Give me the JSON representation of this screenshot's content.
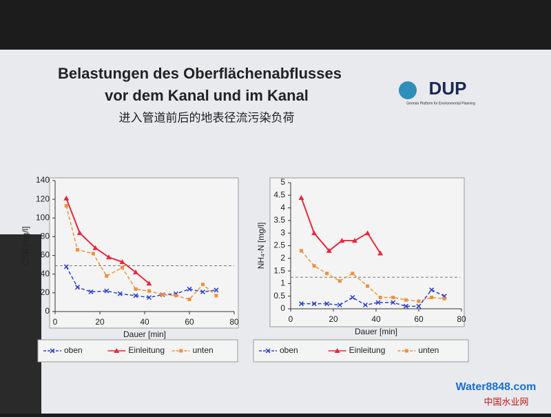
{
  "slide": {
    "title_lines": [
      "Belastungen des  Oberflächenabflusses",
      "vor dem Kanal und im Kanal"
    ],
    "subtitle": "进入管道前后的地表径流污染负荷",
    "logo": "DUP",
    "logo_caption": "German Platform for Environmental Planning"
  },
  "watermark": {
    "brand": "Water8848.com",
    "brand_cn": "中国水业网"
  },
  "chart_data": [
    {
      "type": "line",
      "y_label": "CSB [mg/l]",
      "x_label": "Dauer [min]",
      "xlim": [
        0,
        80
      ],
      "xticks": [
        0,
        20,
        40,
        60,
        80
      ],
      "ylim": [
        0,
        140
      ],
      "yticks": [
        0,
        20,
        40,
        60,
        80,
        100,
        120,
        140
      ],
      "hline": 49,
      "series": [
        {
          "name": "oben",
          "color": "#2a3fd0",
          "marker": "x",
          "dash": true,
          "x": [
            5,
            10,
            16,
            23,
            29,
            36,
            42,
            48,
            54,
            60,
            66,
            72
          ],
          "values": [
            48,
            26,
            21,
            22,
            19,
            17,
            15,
            18,
            19,
            24,
            21,
            23
          ]
        },
        {
          "name": "Einleitung",
          "color": "#e8283c",
          "marker": "triangle",
          "dash": false,
          "x": [
            5,
            11,
            18,
            24,
            30,
            36,
            42
          ],
          "values": [
            121,
            84,
            68,
            58,
            53,
            42,
            30
          ]
        },
        {
          "name": "unten",
          "color": "#f0903c",
          "marker": "square",
          "dash": true,
          "x": [
            5,
            10,
            17,
            23,
            30,
            36,
            42,
            48,
            54,
            60,
            66,
            72
          ],
          "values": [
            113,
            66,
            62,
            38,
            47,
            24,
            22,
            18,
            17,
            13,
            29,
            17
          ]
        }
      ]
    },
    {
      "type": "line",
      "y_label": "NH₄-N [mg/l]",
      "x_label": "Dauer [min]",
      "xlim": [
        0,
        80
      ],
      "xticks": [
        0,
        20,
        40,
        60,
        80
      ],
      "ylim": [
        0,
        5
      ],
      "yticks": [
        0,
        0.5,
        1,
        1.5,
        2,
        2.5,
        3,
        3.5,
        4,
        4.5,
        5
      ],
      "hline": 1.25,
      "series": [
        {
          "name": "oben",
          "color": "#2a3fd0",
          "marker": "x",
          "dash": true,
          "x": [
            5,
            11,
            17,
            23,
            29,
            35,
            41,
            48,
            54,
            60,
            66,
            72
          ],
          "values": [
            0.2,
            0.2,
            0.2,
            0.15,
            0.45,
            0.15,
            0.25,
            0.25,
            0.1,
            0.1,
            0.75,
            0.5
          ]
        },
        {
          "name": "Einleitung",
          "color": "#e8283c",
          "marker": "triangle",
          "dash": false,
          "x": [
            5,
            11,
            18,
            24,
            30,
            36,
            42
          ],
          "values": [
            4.4,
            3,
            2.3,
            2.7,
            2.7,
            3,
            2.2
          ]
        },
        {
          "name": "unten",
          "color": "#f0903c",
          "marker": "square",
          "dash": true,
          "x": [
            5,
            11,
            17,
            23,
            29,
            36,
            42,
            48,
            54,
            60,
            66,
            72
          ],
          "values": [
            2.3,
            1.7,
            1.4,
            1.1,
            1.4,
            0.9,
            0.45,
            0.45,
            0.35,
            0.3,
            0.45,
            0.4
          ]
        }
      ]
    }
  ]
}
